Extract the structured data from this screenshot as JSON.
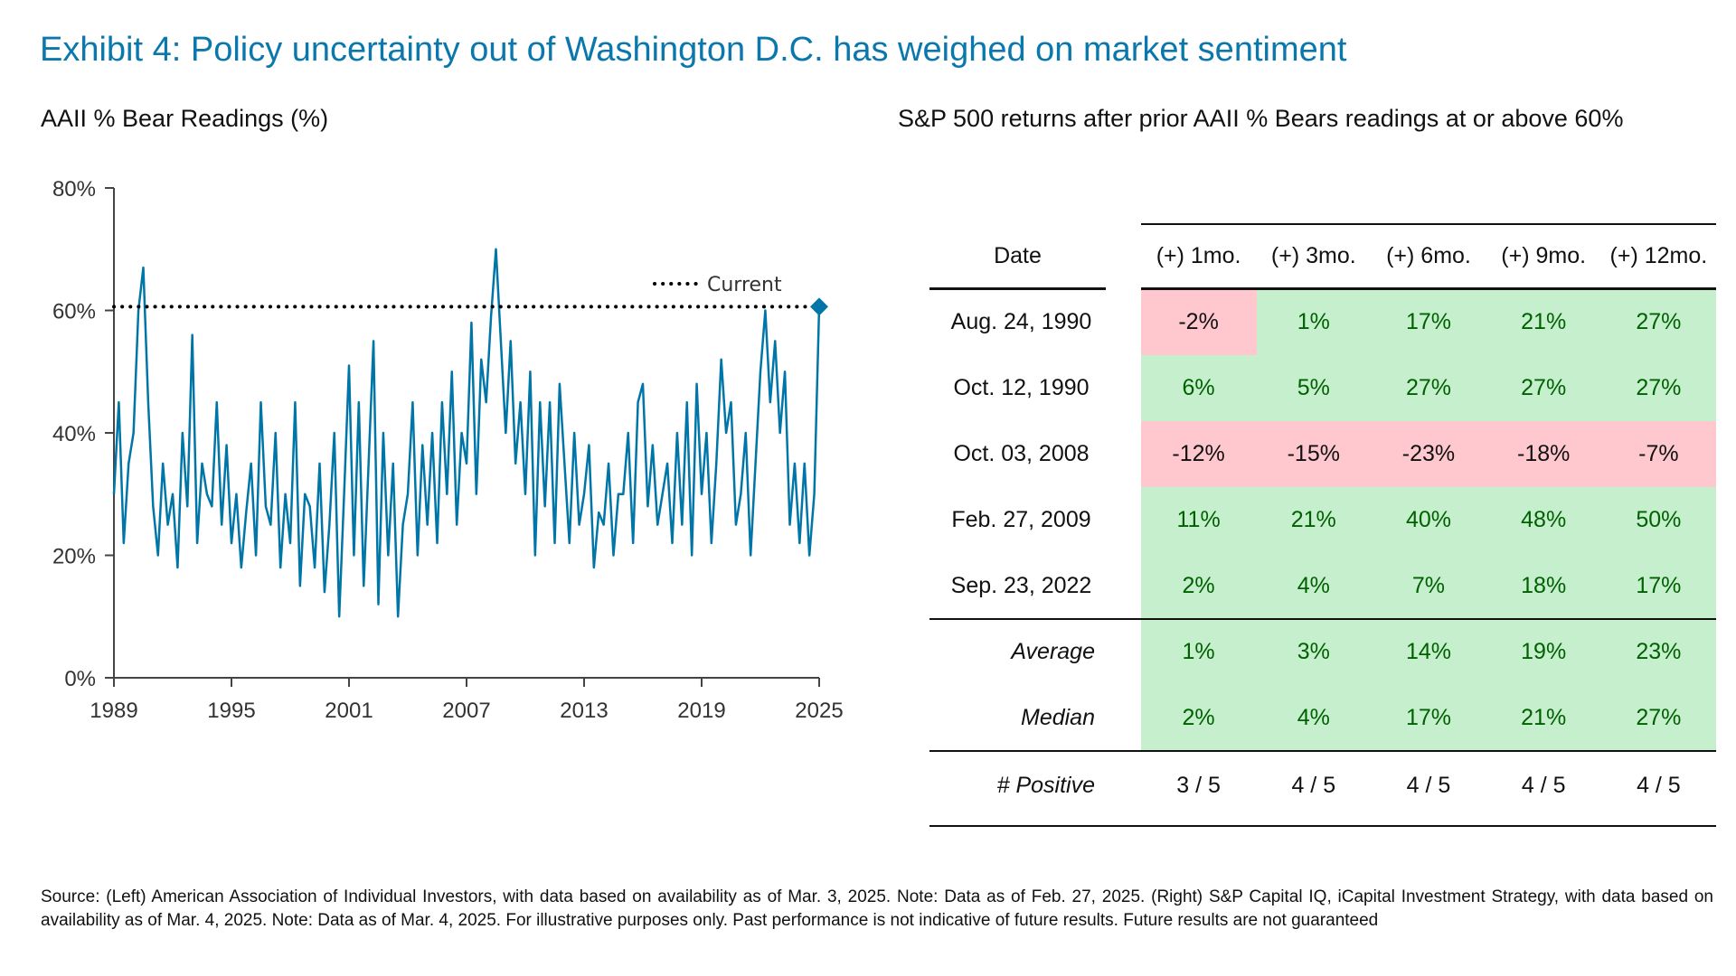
{
  "title": "Exhibit 4: Policy uncertainty out of Washington D.C. has weighed on market sentiment",
  "left_subtitle": "AAII % Bear Readings (%)",
  "right_subtitle": "S&P 500 returns after prior AAII % Bears readings at or above 60%",
  "colors": {
    "title": "#0a78ad",
    "line": "#0076a8",
    "positive_bg": "#c6efce",
    "negative_bg": "#ffc7ce",
    "positive_text": "#006100"
  },
  "chart_data": {
    "type": "line",
    "title": "AAII % Bear Readings (%)",
    "ylim": [
      0,
      80
    ],
    "xlim": [
      1989,
      2025
    ],
    "y_ticks": [
      "0%",
      "20%",
      "40%",
      "60%",
      "80%"
    ],
    "y_tick_values": [
      0,
      20,
      40,
      60,
      80
    ],
    "x_ticks": [
      "1989",
      "1995",
      "2001",
      "2007",
      "2013",
      "2019",
      "2025"
    ],
    "x_tick_values": [
      1989,
      1995,
      2001,
      2007,
      2013,
      2019,
      2025
    ],
    "grid": false,
    "legend": {
      "label": "Current",
      "placement": "top-right"
    },
    "current_value": 60.6,
    "series": [
      {
        "x_start": 1989,
        "x_step": 0.25,
        "values": [
          30,
          45,
          22,
          35,
          40,
          60,
          67,
          45,
          28,
          20,
          35,
          25,
          30,
          18,
          40,
          28,
          56,
          22,
          35,
          30,
          28,
          45,
          25,
          38,
          22,
          30,
          18,
          27,
          35,
          20,
          45,
          28,
          25,
          40,
          18,
          30,
          22,
          45,
          15,
          30,
          28,
          18,
          35,
          14,
          25,
          40,
          10,
          30,
          51,
          20,
          45,
          15,
          35,
          55,
          12,
          40,
          20,
          35,
          10,
          25,
          30,
          45,
          20,
          38,
          25,
          40,
          22,
          45,
          30,
          50,
          25,
          40,
          35,
          58,
          30,
          52,
          45,
          59,
          70,
          55,
          40,
          55,
          35,
          45,
          30,
          50,
          20,
          45,
          28,
          45,
          22,
          48,
          35,
          22,
          40,
          25,
          30,
          38,
          18,
          27,
          25,
          35,
          20,
          30,
          30,
          40,
          22,
          45,
          48,
          28,
          38,
          25,
          30,
          35,
          22,
          40,
          25,
          45,
          20,
          48,
          30,
          40,
          22,
          35,
          52,
          40,
          45,
          25,
          30,
          40,
          20,
          35,
          50,
          60,
          45,
          55,
          40,
          50,
          25,
          35,
          22,
          35,
          20,
          30,
          60.6
        ]
      }
    ]
  },
  "table": {
    "headers": [
      "Date",
      "(+) 1mo.",
      "(+) 3mo.",
      "(+) 6mo.",
      "(+) 9mo.",
      "(+) 12mo."
    ],
    "rows": [
      {
        "label": "Aug. 24, 1990",
        "values": [
          "-2%",
          "1%",
          "17%",
          "21%",
          "27%"
        ]
      },
      {
        "label": "Oct. 12, 1990",
        "values": [
          "6%",
          "5%",
          "27%",
          "27%",
          "27%"
        ]
      },
      {
        "label": "Oct. 03, 2008",
        "values": [
          "-12%",
          "-15%",
          "-23%",
          "-18%",
          "-7%"
        ]
      },
      {
        "label": "Feb. 27, 2009",
        "values": [
          "11%",
          "21%",
          "40%",
          "48%",
          "50%"
        ]
      },
      {
        "label": "Sep. 23, 2022",
        "values": [
          "2%",
          "4%",
          "7%",
          "18%",
          "17%"
        ]
      }
    ],
    "summary": [
      {
        "label": "Average",
        "values": [
          "1%",
          "3%",
          "14%",
          "19%",
          "23%"
        ]
      },
      {
        "label": "Median",
        "values": [
          "2%",
          "4%",
          "17%",
          "21%",
          "27%"
        ]
      }
    ],
    "positive": {
      "label": "# Positive",
      "values": [
        "3 / 5",
        "4 / 5",
        "4 / 5",
        "4 / 5",
        "4 / 5"
      ]
    }
  },
  "footer": "Source: (Left) American Association of Individual Investors, with data based on availability as of Mar. 3, 2025. Note: Data as of Feb. 27, 2025. (Right) S&P Capital IQ, iCapital Investment Strategy, with data based on availability as of Mar. 4, 2025. Note: Data as of Mar. 4, 2025.  For illustrative purposes only. Past performance is not indicative of future results. Future results are not guaranteed"
}
